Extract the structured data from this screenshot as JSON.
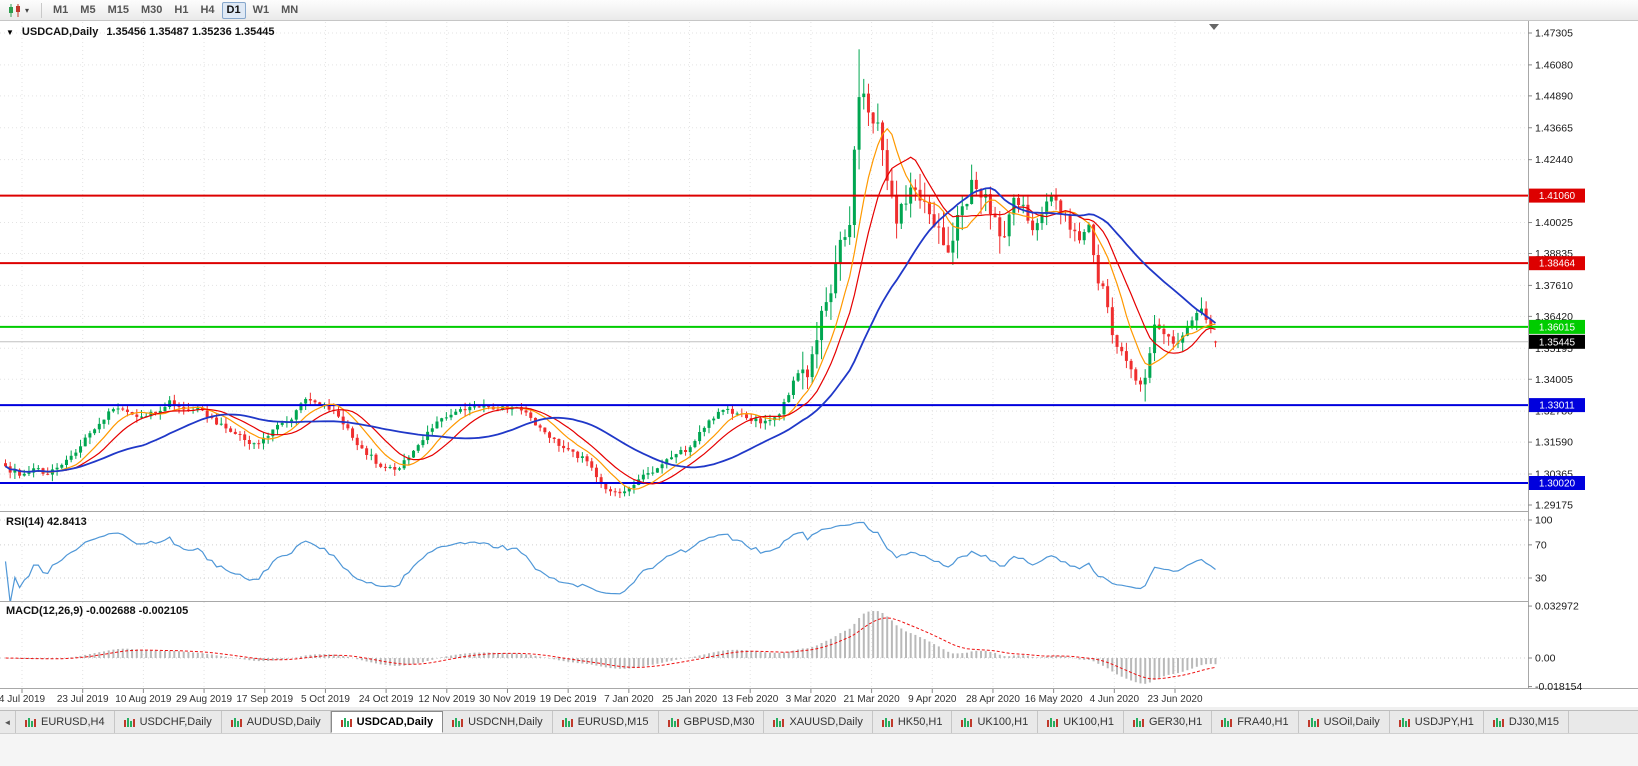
{
  "toolbar": {
    "periods": [
      "M1",
      "M5",
      "M15",
      "M30",
      "H1",
      "H4",
      "D1",
      "W1",
      "MN"
    ],
    "active_period": "D1"
  },
  "chart_header": {
    "dropdown_arrow": "▼",
    "symbol": "USDCAD,Daily",
    "ohlc_text": "1.35456 1.35487 1.35236 1.35445"
  },
  "chart_data": {
    "type": "candlestick",
    "symbol": "USDCAD",
    "timeframe": "Daily",
    "current_bar": {
      "open": 1.35456,
      "high": 1.35487,
      "low": 1.35236,
      "close": 1.35445
    },
    "bar_count": 259,
    "y_axis_range": [
      1.2898,
      1.4773
    ],
    "y_tick_labels": [
      "1.47305",
      "1.46080",
      "1.44890",
      "1.43665",
      "1.42440",
      "1.40025",
      "1.38835",
      "1.37610",
      "1.36420",
      "1.35195",
      "1.34005",
      "1.32780",
      "1.31590",
      "1.30365",
      "1.29175"
    ],
    "x_tick_labels": [
      "4 Jul 2019",
      "23 Jul 2019",
      "10 Aug 2019",
      "29 Aug 2019",
      "17 Sep 2019",
      "5 Oct 2019",
      "24 Oct 2019",
      "12 Nov 2019",
      "30 Nov 2019",
      "19 Dec 2019",
      "7 Jan 2020",
      "25 Jan 2020",
      "13 Feb 2020",
      "3 Mar 2020",
      "21 Mar 2020",
      "9 Apr 2020",
      "28 Apr 2020",
      "16 May 2020",
      "4 Jun 2020",
      "23 Jun 2020"
    ],
    "horizontal_levels": [
      {
        "price": 1.4106,
        "label": "1.41060",
        "color": "#dd0000"
      },
      {
        "price": 1.38464,
        "label": "1.38464",
        "color": "#dd0000"
      },
      {
        "price": 1.36015,
        "label": "1.36015",
        "color": "#00cc00"
      },
      {
        "price": 1.33011,
        "label": "1.33011",
        "color": "#0000dd"
      },
      {
        "price": 1.3002,
        "label": "1.30020",
        "color": "#0000dd"
      }
    ],
    "current_price_line": {
      "price": 1.35445,
      "label": "1.35445",
      "line_color": "#c0c0c0",
      "badge_color": "#000000"
    },
    "close_anchors": [
      [
        0,
        1.3065
      ],
      [
        3,
        1.303
      ],
      [
        6,
        1.3058
      ],
      [
        9,
        1.3042
      ],
      [
        12,
        1.3078
      ],
      [
        15,
        1.312
      ],
      [
        19,
        1.3215
      ],
      [
        23,
        1.3292
      ],
      [
        27,
        1.3255
      ],
      [
        31,
        1.3268
      ],
      [
        35,
        1.3312
      ],
      [
        39,
        1.327
      ],
      [
        41,
        1.3298
      ],
      [
        45,
        1.3232
      ],
      [
        49,
        1.3192
      ],
      [
        53,
        1.3148
      ],
      [
        57,
        1.3205
      ],
      [
        61,
        1.3242
      ],
      [
        64,
        1.3332
      ],
      [
        68,
        1.3302
      ],
      [
        72,
        1.3238
      ],
      [
        76,
        1.3132
      ],
      [
        80,
        1.3072
      ],
      [
        84,
        1.3052
      ],
      [
        88,
        1.3158
      ],
      [
        92,
        1.3232
      ],
      [
        96,
        1.3272
      ],
      [
        100,
        1.3302
      ],
      [
        104,
        1.3282
      ],
      [
        108,
        1.3298
      ],
      [
        112,
        1.3252
      ],
      [
        116,
        1.3172
      ],
      [
        120,
        1.3132
      ],
      [
        124,
        1.3082
      ],
      [
        127,
        1.2992
      ],
      [
        130,
        1.2958
      ],
      [
        134,
        1.3002
      ],
      [
        138,
        1.3052
      ],
      [
        142,
        1.3108
      ],
      [
        146,
        1.3138
      ],
      [
        149,
        1.3218
      ],
      [
        153,
        1.3292
      ],
      [
        157,
        1.3262
      ],
      [
        161,
        1.3238
      ],
      [
        165,
        1.3268
      ],
      [
        169,
        1.3432
      ],
      [
        171,
        1.3388
      ],
      [
        174,
        1.3662
      ],
      [
        176,
        1.3732
      ],
      [
        178,
        1.3922
      ],
      [
        180,
        1.4025
      ],
      [
        182,
        1.4508
      ],
      [
        184,
        1.4452
      ],
      [
        186,
        1.4355
      ],
      [
        188,
        1.4182
      ],
      [
        190,
        1.4012
      ],
      [
        191,
        1.4062
      ],
      [
        193,
        1.4152
      ],
      [
        195,
        1.4092
      ],
      [
        197,
        1.4032
      ],
      [
        199,
        1.3962
      ],
      [
        201,
        1.3868
      ],
      [
        203,
        1.4032
      ],
      [
        205,
        1.4105
      ],
      [
        207,
        1.4162
      ],
      [
        209,
        1.4085
      ],
      [
        211,
        1.3992
      ],
      [
        213,
        1.3942
      ],
      [
        215,
        1.4092
      ],
      [
        217,
        1.4052
      ],
      [
        219,
        1.3982
      ],
      [
        221,
        1.4032
      ],
      [
        223,
        1.4112
      ],
      [
        225,
        1.4052
      ],
      [
        227,
        1.3972
      ],
      [
        229,
        1.3942
      ],
      [
        231,
        1.3992
      ],
      [
        233,
        1.3782
      ],
      [
        234,
        1.3772
      ],
      [
        236,
        1.3572
      ],
      [
        238,
        1.3502
      ],
      [
        240,
        1.3422
      ],
      [
        242,
        1.3392
      ],
      [
        243,
        1.3412
      ],
      [
        245,
        1.3622
      ],
      [
        247,
        1.3582
      ],
      [
        249,
        1.3532
      ],
      [
        251,
        1.3562
      ],
      [
        253,
        1.3622
      ],
      [
        255,
        1.3682
      ],
      [
        257,
        1.3582
      ],
      [
        258,
        1.35445
      ]
    ],
    "extreme_points": [
      {
        "i": 130,
        "low": 1.2951
      },
      {
        "i": 182,
        "high": 1.4668
      },
      {
        "i": 243,
        "low": 1.3315
      },
      {
        "i": 255,
        "high": 1.3715
      }
    ],
    "volatility_segments": [
      [
        0,
        170,
        0.0032
      ],
      [
        170,
        215,
        0.0095
      ],
      [
        215,
        235,
        0.0055
      ],
      [
        235,
        259,
        0.0048
      ]
    ],
    "moving_averages": [
      {
        "period": 8,
        "color": "#ff9900"
      },
      {
        "period": 13,
        "color": "#e60000"
      },
      {
        "period": 30,
        "color": "#2038c8"
      }
    ],
    "candle_colors": {
      "up": "#00a651",
      "down": "#ef2e2e"
    },
    "indicators": {
      "rsi": {
        "label": "RSI(14) 42.8413",
        "period": 14,
        "value": 42.8413,
        "scale_labels": [
          "100",
          "70",
          "30"
        ],
        "levels": [
          100,
          70,
          30
        ],
        "line_color": "#4f97d7"
      },
      "macd": {
        "label": "MACD(12,26,9) -0.002688 -0.002105",
        "fast": 12,
        "slow": 26,
        "signal_period": 9,
        "value_main": -0.002688,
        "value_signal": -0.002105,
        "scale_labels": [
          "0.032972",
          "0.00",
          "-0.018154"
        ],
        "histogram_color": "#b9b9b9",
        "signal_color": "#ee1111"
      }
    }
  },
  "tabs": {
    "scroll_left_icon": "◄",
    "items": [
      "EURUSD,H4",
      "USDCHF,Daily",
      "AUDUSD,Daily",
      "USDCAD,Daily",
      "USDCNH,Daily",
      "EURUSD,M15",
      "GBPUSD,M30",
      "XAUUSD,Daily",
      "HK50,H1",
      "UK100,H1",
      "UK100,H1",
      "GER30,H1",
      "FRA40,H1",
      "USOil,Daily",
      "USDJPY,H1",
      "DJ30,M15"
    ],
    "active_index": 3
  }
}
